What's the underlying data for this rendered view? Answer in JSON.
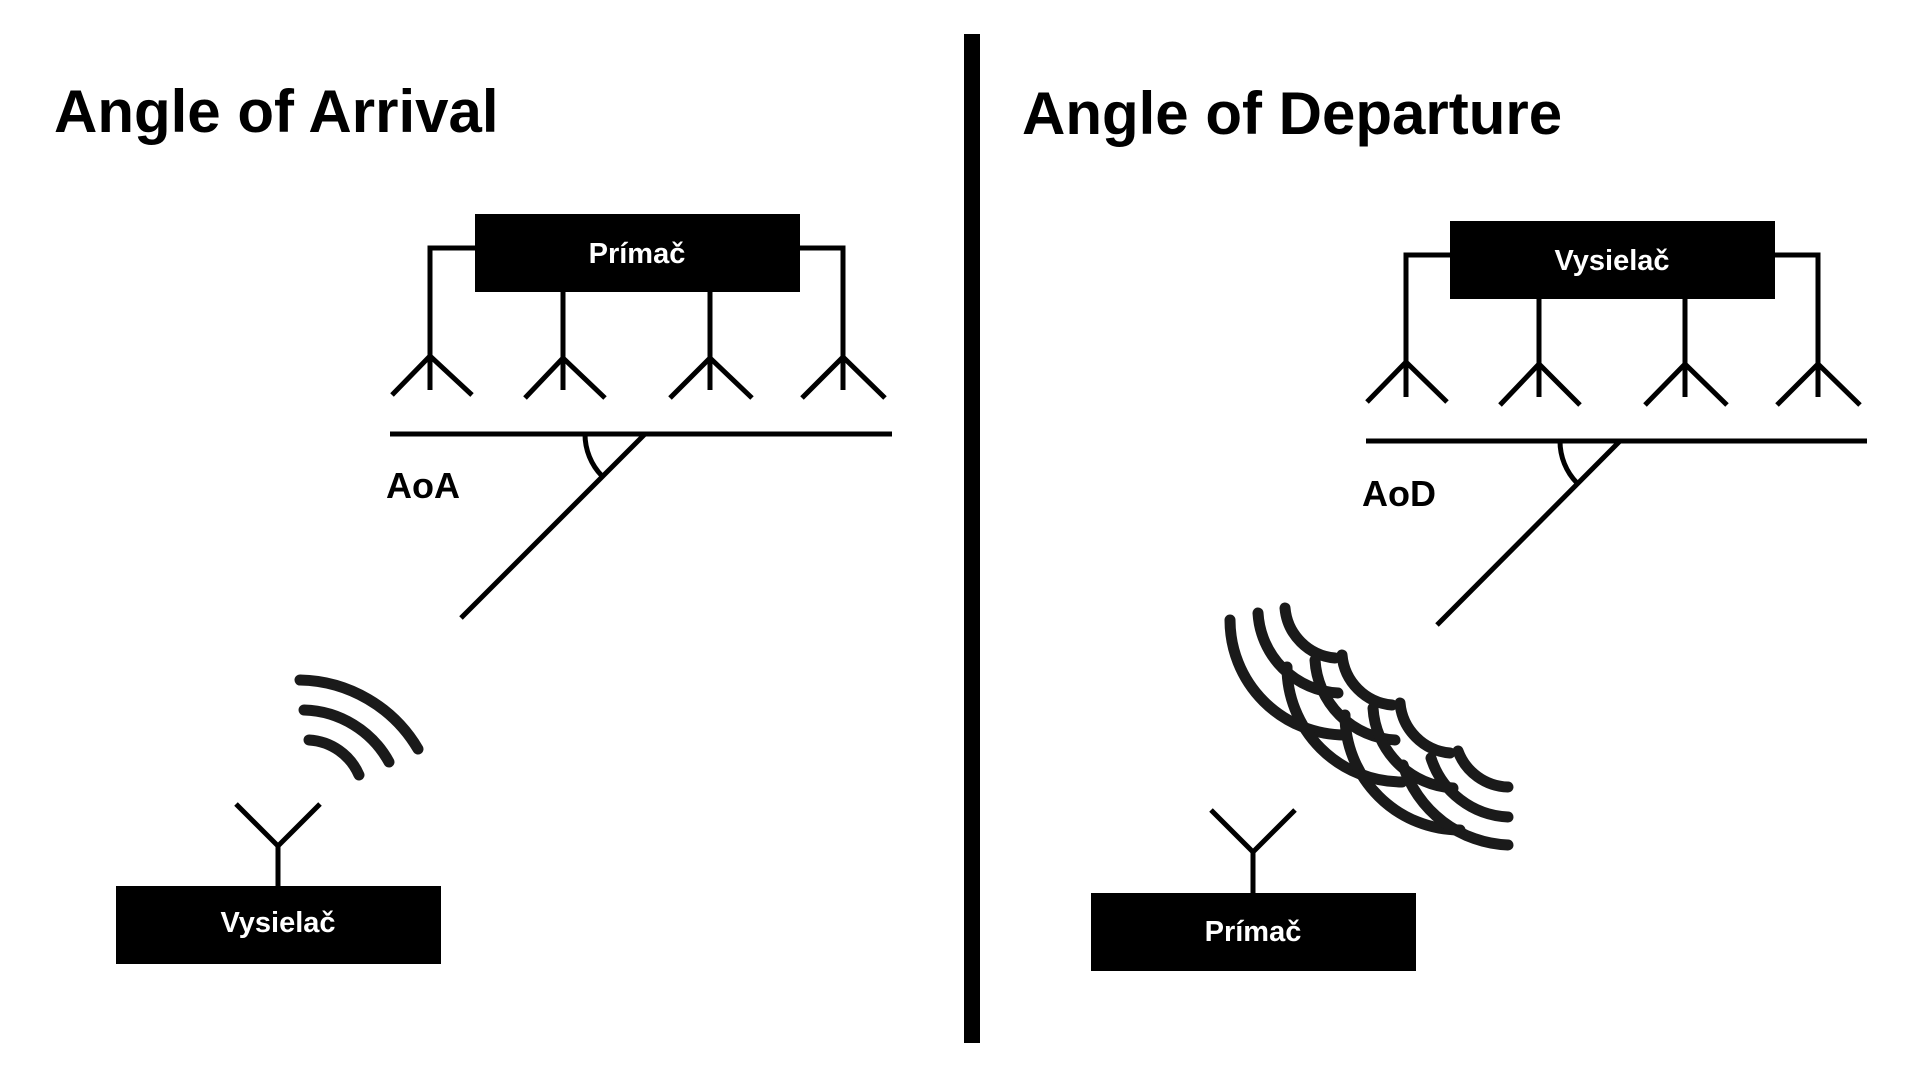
{
  "left_panel": {
    "title": "Angle of Arrival",
    "array_box_label": "Prímač",
    "angle_label": "AoA",
    "single_box_label": "Vysielač"
  },
  "right_panel": {
    "title": "Angle of Departure",
    "array_box_label": "Vysielač",
    "angle_label": "AoD",
    "single_box_label": "Prímač"
  },
  "colors": {
    "ink": "#000000",
    "wave": "#1a1a1a",
    "background": "#ffffff"
  }
}
